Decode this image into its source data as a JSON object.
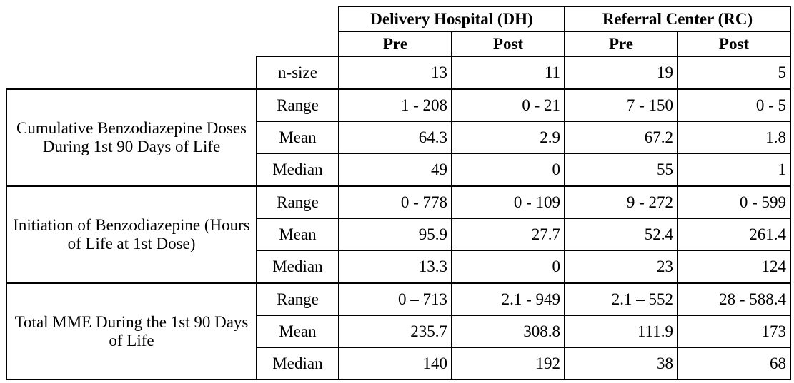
{
  "header": {
    "groups": [
      "Delivery Hospital (DH)",
      "Referral Center (RC)"
    ],
    "subgroups": [
      "Pre",
      "Post",
      "Pre",
      "Post"
    ]
  },
  "nsize": {
    "label": "n-size",
    "values": [
      "13",
      "11",
      "19",
      "5"
    ]
  },
  "sections": [
    {
      "title": "Cumulative Benzodiazepine Doses During 1st 90 Days of Life",
      "rows": [
        {
          "stat": "Range",
          "values": [
            "1 - 208",
            "0 - 21",
            "7 - 150",
            "0 - 5"
          ]
        },
        {
          "stat": "Mean",
          "values": [
            "64.3",
            "2.9",
            "67.2",
            "1.8"
          ]
        },
        {
          "stat": "Median",
          "values": [
            "49",
            "0",
            "55",
            "1"
          ]
        }
      ]
    },
    {
      "title": "Initiation of Benzodiazepine (Hours of Life at 1st Dose)",
      "rows": [
        {
          "stat": "Range",
          "values": [
            "0 - 778",
            "0 - 109",
            "9 - 272",
            "0 - 599"
          ]
        },
        {
          "stat": "Mean",
          "values": [
            "95.9",
            "27.7",
            "52.4",
            "261.4"
          ]
        },
        {
          "stat": "Median",
          "values": [
            "13.3",
            "0",
            "23",
            "124"
          ]
        }
      ]
    },
    {
      "title": "Total MME During the 1st 90 Days of Life",
      "rows": [
        {
          "stat": "Range",
          "values": [
            "0 – 713",
            "2.1 - 949",
            "2.1 – 552",
            "28 - 588.4"
          ]
        },
        {
          "stat": "Mean",
          "values": [
            "235.7",
            "308.8",
            "111.9",
            "173"
          ]
        },
        {
          "stat": "Median",
          "values": [
            "140",
            "192",
            "38",
            "68"
          ]
        }
      ]
    }
  ]
}
